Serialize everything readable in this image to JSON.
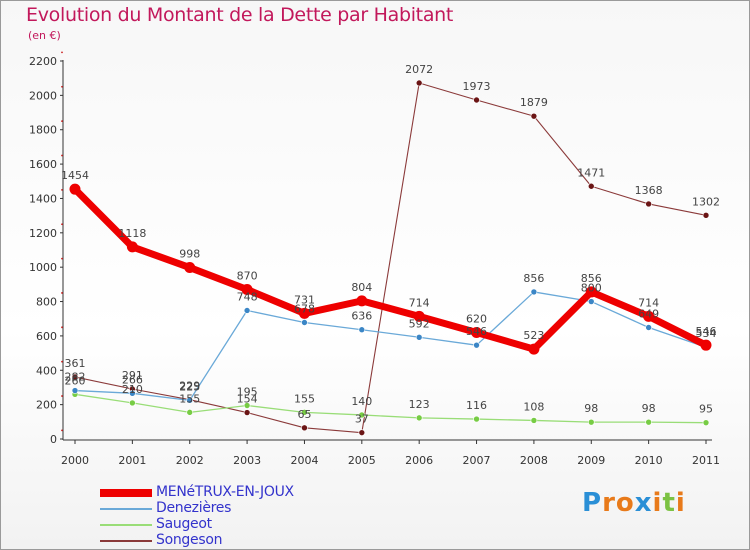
{
  "chart_data": {
    "type": "line",
    "title": "Evolution du Montant de la Dette par Habitant",
    "subtitle": "(en €)",
    "x": [
      "2000",
      "2001",
      "2002",
      "2003",
      "2004",
      "2005",
      "2006",
      "2007",
      "2008",
      "2009",
      "2010",
      "2011"
    ],
    "ylim": [
      0,
      2200
    ],
    "yticks": [
      0,
      200,
      400,
      600,
      800,
      1000,
      1200,
      1400,
      1600,
      1800,
      2000,
      2200
    ],
    "grid": false,
    "series": [
      {
        "name": "MENéTRUX-EN-JOUX",
        "color": "#ee0000",
        "marker": "#ee0000",
        "width": 7,
        "values": [
          1454,
          1118,
          998,
          870,
          731,
          804,
          714,
          620,
          523,
          856,
          714,
          546
        ]
      },
      {
        "name": "Denezières",
        "color": "#6aa9d8",
        "marker": "#3b86c6",
        "width": 1.3,
        "values": [
          282,
          266,
          225,
          748,
          678,
          636,
          592,
          546,
          856,
          800,
          649,
          534
        ]
      },
      {
        "name": "Saugeot",
        "color": "#99dd77",
        "marker": "#77cc44",
        "width": 1.3,
        "values": [
          260,
          210,
          155,
          195,
          155,
          140,
          123,
          116,
          108,
          98,
          98,
          95
        ]
      },
      {
        "name": "Songeson",
        "color": "#8b3a3a",
        "marker": "#6b1515",
        "width": 1.1,
        "values": [
          361,
          291,
          229,
          154,
          65,
          37,
          2072,
          1973,
          1879,
          1471,
          1368,
          1302
        ]
      }
    ]
  },
  "logo": {
    "letters": [
      "P",
      "r",
      "o",
      "x",
      "i",
      "t",
      "i"
    ],
    "colors": [
      "#2a8fd6",
      "#e87a1a",
      "#e87a1a",
      "#2a8fd6",
      "#e87a1a",
      "#7cc243",
      "#e87a1a"
    ]
  }
}
